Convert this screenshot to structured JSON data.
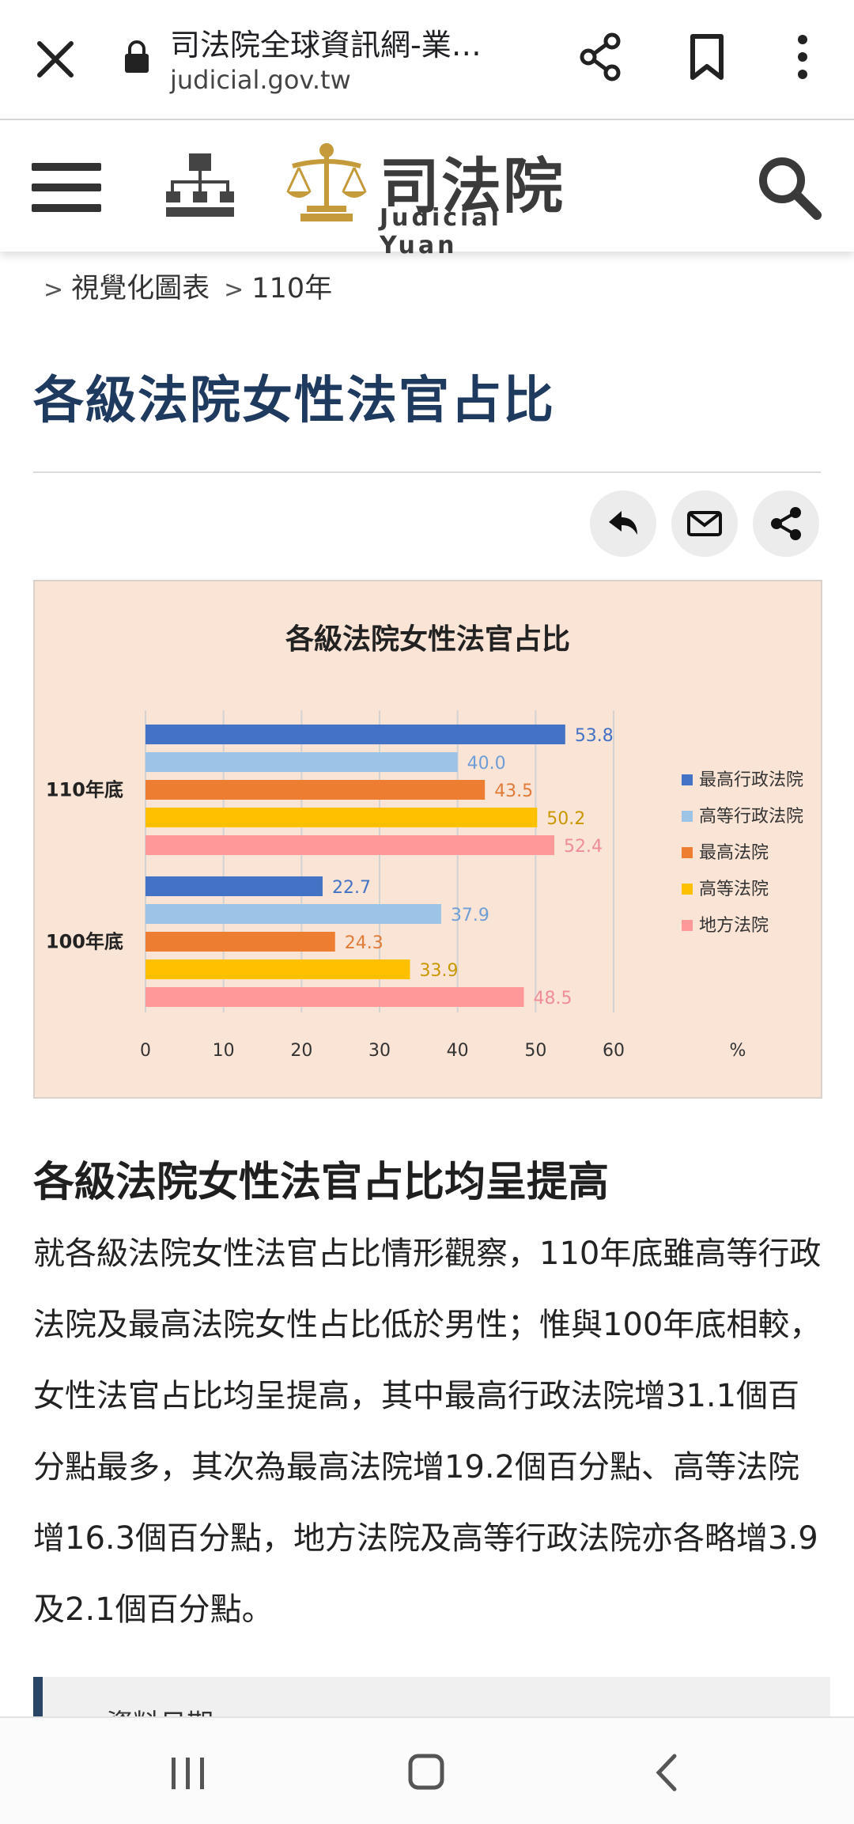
{
  "browser": {
    "title": "司法院全球資訊網-業…",
    "url": "judicial.gov.tw"
  },
  "site": {
    "logo_cn": "司法院",
    "logo_en": "Judicial Yuan"
  },
  "breadcrumb": [
    "視覺化圖表",
    "110年"
  ],
  "page_title": "各級法院女性法官占比",
  "chart_data": {
    "type": "bar",
    "orientation": "horizontal",
    "title": "各級法院女性法官占比",
    "categories": [
      "110年底",
      "100年底"
    ],
    "series": [
      {
        "name": "最高行政法院",
        "color": "#4472c4",
        "values": [
          53.8,
          22.7
        ]
      },
      {
        "name": "高等行政法院",
        "color": "#9dc3e6",
        "values": [
          40.0,
          37.9
        ]
      },
      {
        "name": "最高法院",
        "color": "#ed7d31",
        "values": [
          43.5,
          24.3
        ]
      },
      {
        "name": "高等法院",
        "color": "#ffc000",
        "values": [
          50.2,
          33.9
        ]
      },
      {
        "name": "地方法院",
        "color": "#ff9999",
        "values": [
          52.4,
          48.5
        ]
      }
    ],
    "value_labels": [
      [
        "53.8",
        "40.0",
        "43.5",
        "50.2",
        "52.4"
      ],
      [
        "22.7",
        "37.9",
        "24.3",
        "33.9",
        "48.5"
      ]
    ],
    "label_colors": [
      "#4472c4",
      "#6f9ed6",
      "#e07b39",
      "#c99700",
      "#f08c98"
    ],
    "xticks": [
      "0",
      "10",
      "20",
      "30",
      "40",
      "50",
      "60"
    ],
    "xlim": [
      0,
      60
    ],
    "unit": "%",
    "grid": true,
    "legend_position": "right"
  },
  "section": {
    "heading": "各級法院女性法官占比均呈提高",
    "paragraph": "就各級法院女性法官占比情形觀察，110年底雖高等行政法院及最高法院女性占比低於男性；惟與100年底相較，女性法官占比均呈提高，其中最高行政法院增31.1個百分點最多，其次為最高法院增19.2個百分點、高等法院增16.3個百分點，地方法院及高等行政法院亦各略增3.9及2.1個百分點。"
  },
  "note": {
    "text": "資料日期"
  },
  "icons": {
    "close": "close-icon",
    "lock": "lock-icon",
    "share": "share-icon",
    "bookmark": "bookmark-icon",
    "more": "more-vert-icon",
    "menu": "menu-icon",
    "sitemap": "sitemap-icon",
    "search": "search-icon",
    "back": "reply-icon",
    "mail": "mail-icon"
  }
}
